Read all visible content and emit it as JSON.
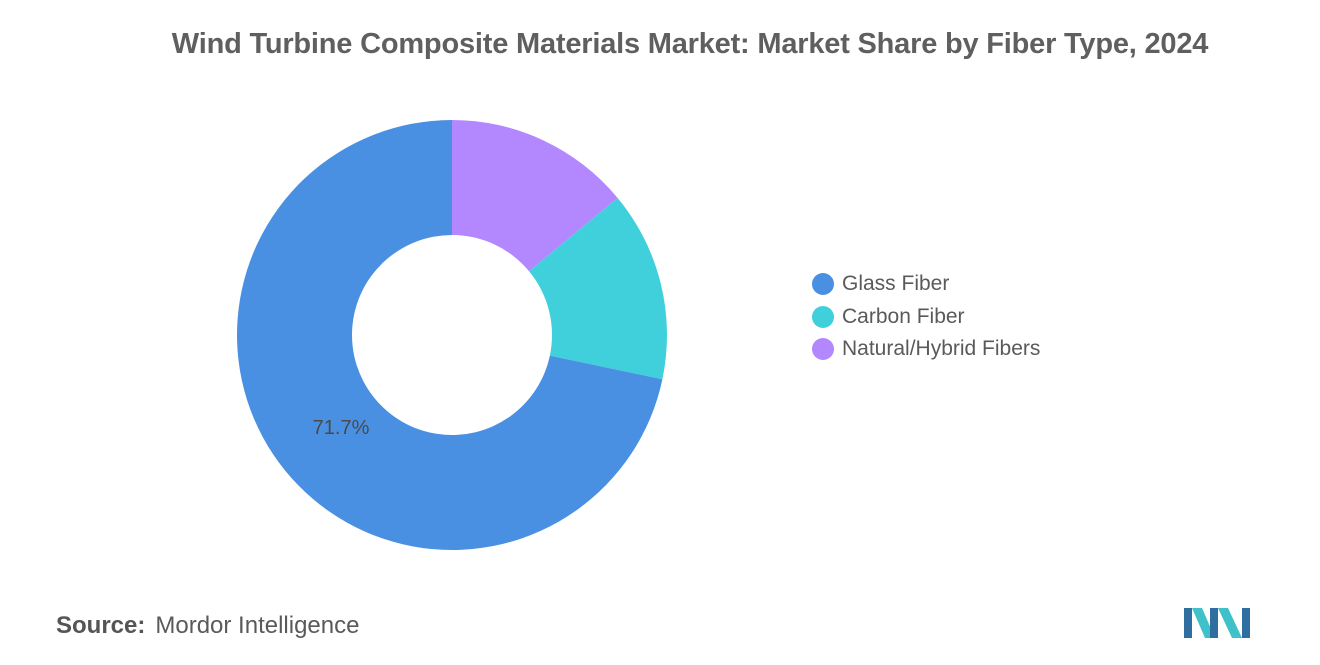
{
  "chart_data": {
    "type": "pie",
    "title": "Wind Turbine Composite Materials Market: Market Share by Fiber Type, 2024",
    "categories": [
      "Glass Fiber",
      "Carbon Fiber",
      "Natural/Hybrid Fibers"
    ],
    "values": [
      71.7,
      14.3,
      14.0
    ],
    "colors": [
      "#4a90e2",
      "#40d0dc",
      "#b388ff"
    ],
    "data_labels": [
      "71.7%",
      "",
      ""
    ],
    "legend_position": "right",
    "donut": true
  },
  "source": {
    "label": "Source:",
    "value": "Mordor Intelligence"
  },
  "logo": {
    "icon": "mordor-intelligence-logo",
    "colors": [
      "#2f6f9f",
      "#3fc1c9"
    ]
  }
}
